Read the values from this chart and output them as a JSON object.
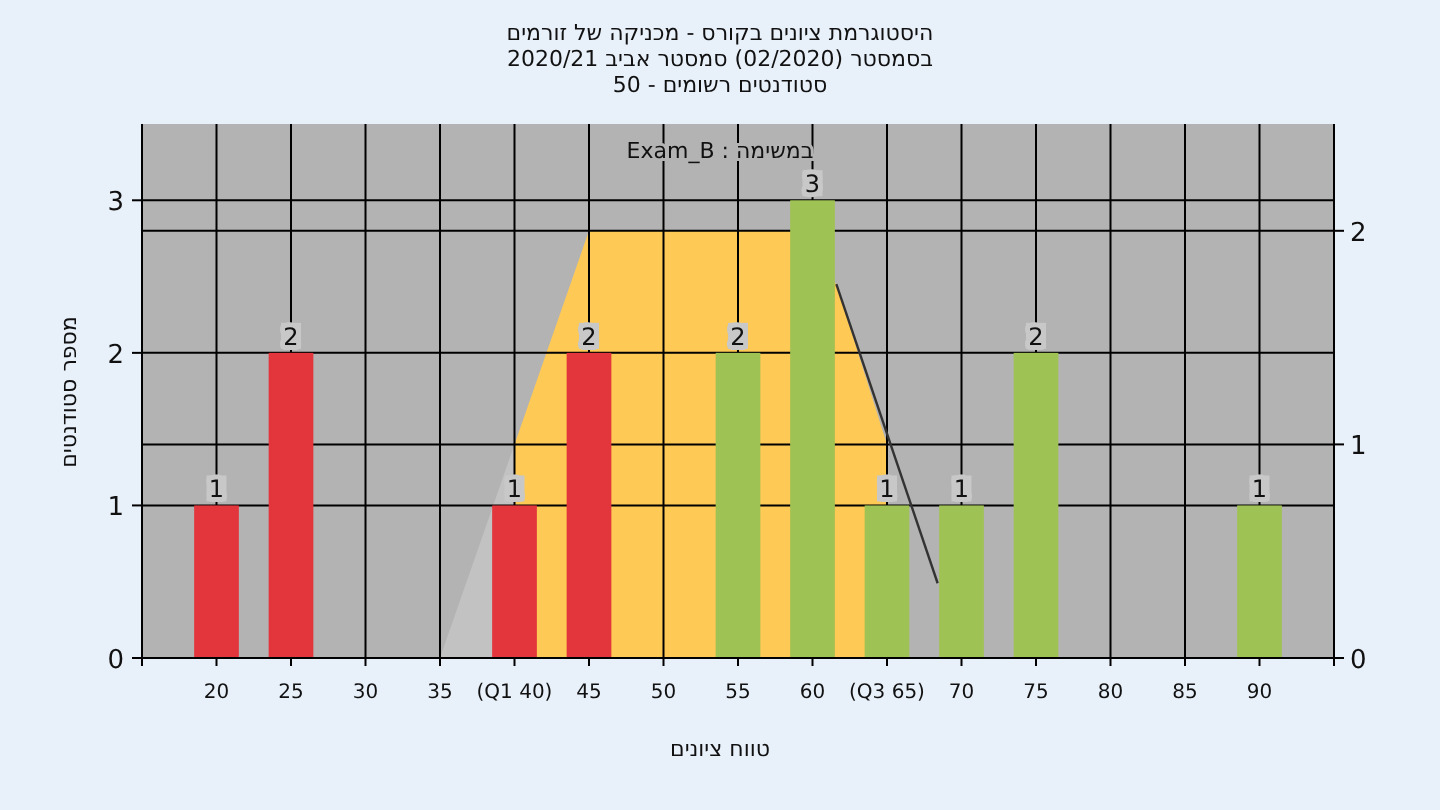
{
  "chart_data": {
    "type": "bar",
    "title": "היסטוגרמת ציונים בקורס - מכניקה של זורמים",
    "subtitle": "בסמסטר  (02/2020)  סמסטר אביב 2020/21\nסטודנטים רשומים - 50",
    "xlabel": "טווח ציונים",
    "ylabel": "מספר סטודנטים",
    "annotations": [
      "במשימה : Exam_B"
    ],
    "x": [
      20,
      25,
      30,
      35,
      40,
      45,
      50,
      55,
      60,
      65,
      70,
      75,
      80,
      85,
      90
    ],
    "xlim": [
      15,
      95
    ],
    "xticks": [
      20,
      25,
      30,
      35,
      {
        "value": 40,
        "label": "(Q1 40)"
      },
      45,
      50,
      55,
      60,
      {
        "value": 65,
        "label": "(Q3 65)"
      },
      70,
      75,
      80,
      85,
      90
    ],
    "ylim": [
      0,
      3.5
    ],
    "yticks": [
      0,
      1,
      2,
      3
    ],
    "y2lim": [
      0,
      2.5
    ],
    "y2ticks": [
      0,
      1,
      2
    ],
    "grid": true,
    "series": [
      {
        "type": "area",
        "axis": "y2",
        "color": "#c2c2c2",
        "x": [
          35,
          40
        ],
        "values": [
          0,
          1
        ]
      },
      {
        "type": "area",
        "axis": "y2",
        "color": "#ffc956",
        "x": [
          40,
          45,
          58.5,
          61.6,
          65
        ],
        "values": [
          1,
          2,
          2,
          1.75,
          1
        ]
      },
      {
        "values": [
          1,
          2,
          null,
          null,
          1,
          2,
          null,
          2,
          3,
          1,
          1,
          2,
          null,
          null,
          1
        ],
        "value_labels": [
          "1",
          "2",
          null,
          null,
          "1",
          "2",
          null,
          "2",
          "3",
          "1",
          "1",
          "2",
          null,
          null,
          "1"
        ],
        "colors": [
          "#e2363c",
          "#e2363c",
          "#e2363c",
          "#e2363c",
          "#e2363c",
          "#e2363c",
          "#9fc254",
          "#9fc254",
          "#9fc254",
          "#9fc254",
          "#9fc254",
          "#9fc254",
          "#9fc254",
          "#9fc254",
          "#9fc254"
        ]
      },
      {
        "type": "line",
        "axis": "y2",
        "color": "#333333",
        "x": [
          61.6,
          68.4
        ],
        "values": [
          1.75,
          0.35
        ]
      }
    ]
  }
}
